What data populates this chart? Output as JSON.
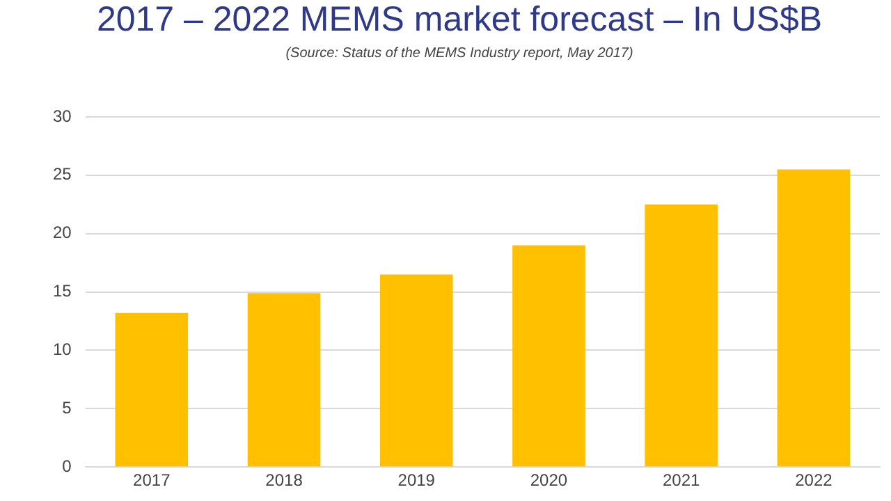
{
  "chart_data": {
    "type": "bar",
    "title": "2017 – 2022 MEMS market forecast – In US$B",
    "subtitle": "(Source: Status of the MEMS Industry report, May 2017)",
    "categories": [
      "2017",
      "2018",
      "2019",
      "2020",
      "2021",
      "2022"
    ],
    "values": [
      13.2,
      14.9,
      16.5,
      19,
      22.5,
      25.5
    ],
    "color": "#ffc000",
    "ylim": [
      0,
      30
    ],
    "yticks": [
      0,
      5,
      10,
      15,
      20,
      25,
      30
    ],
    "grid": "y",
    "legend": false
  }
}
